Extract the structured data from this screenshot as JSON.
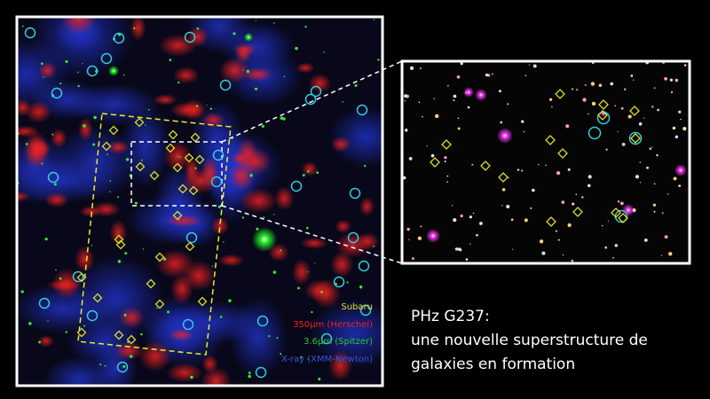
{
  "legend": [
    "Subaru",
    "350μm (Herschel)",
    "3.6μm (Spitzer)",
    "X-ray (XMM-Newton)"
  ],
  "caption": [
    "PHz G237:",
    "une nouvelle superstructure de",
    "galaxies en formation"
  ]
}
